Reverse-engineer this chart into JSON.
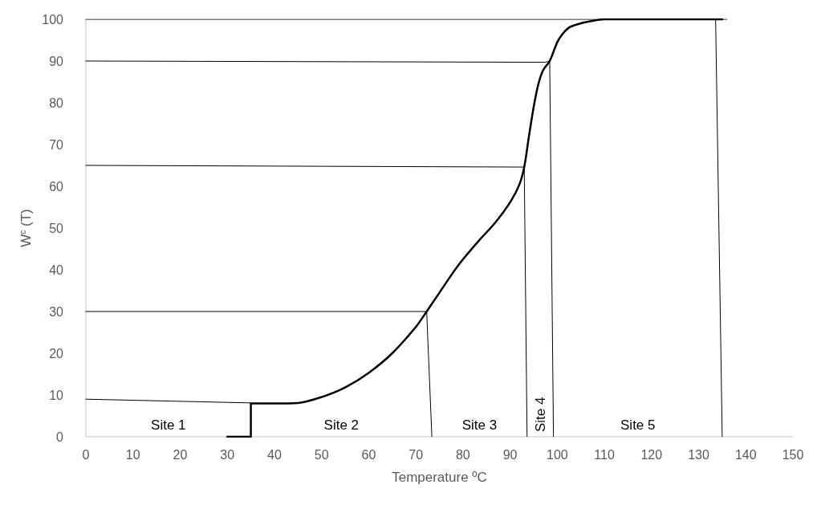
{
  "chart_data": {
    "type": "line",
    "xlabel": "Temperature ºC",
    "ylabel": "W$^{c}$ (T)",
    "xlim": [
      0,
      150
    ],
    "xticks": [
      0,
      10,
      20,
      30,
      40,
      50,
      60,
      70,
      80,
      90,
      100,
      110,
      120,
      130,
      140,
      150
    ],
    "ylim": [
      0,
      100
    ],
    "yticks": [
      0,
      10,
      20,
      30,
      40,
      50,
      60,
      70,
      80,
      90,
      100
    ],
    "grid": false,
    "marker": "none",
    "line_style": "solid",
    "series": [
      {
        "color": "#000000",
        "x": [
          30,
          35,
          35,
          40,
          45,
          50,
          55,
          60,
          65,
          70,
          72.3,
          75,
          78,
          80,
          83.4,
          87,
          90.2,
          92,
          93,
          94,
          95,
          96,
          97,
          98.4,
          100,
          101,
          102.5,
          104.3,
          107,
          110,
          120,
          135
        ],
        "values": [
          0,
          0,
          8,
          8,
          8.1,
          9.5,
          11.8,
          15.3,
          20,
          26.3,
          30,
          34.5,
          39.5,
          42.5,
          47,
          51.5,
          56.5,
          60.5,
          64.6,
          72,
          79,
          84.5,
          87.8,
          90,
          94.5,
          96.3,
          98,
          98.8,
          99.5,
          100,
          100,
          100
        ]
      },
      {
        "color": "#000000",
        "x": [
          0,
          35
        ],
        "values": [
          9,
          8.1
        ]
      },
      {
        "color": "#000000",
        "x": [
          0,
          72.3,
          73.4
        ],
        "values": [
          30,
          30,
          0
        ]
      },
      {
        "color": "#000000",
        "x": [
          0,
          93,
          93.6
        ],
        "values": [
          65,
          64.6,
          0
        ]
      },
      {
        "color": "#000000",
        "x": [
          0,
          97.5,
          98.4,
          99.2
        ],
        "values": [
          90,
          89.7,
          90,
          0
        ]
      },
      {
        "color": "#000000",
        "x": [
          0,
          136
        ],
        "values": [
          100,
          100
        ]
      },
      {
        "color": "#000000",
        "x": [
          133.6,
          135
        ],
        "values": [
          100,
          0
        ]
      }
    ],
    "annotations": [
      "Site 1",
      "Site 2",
      "Site 3",
      "Site 4",
      "Site 5"
    ]
  }
}
